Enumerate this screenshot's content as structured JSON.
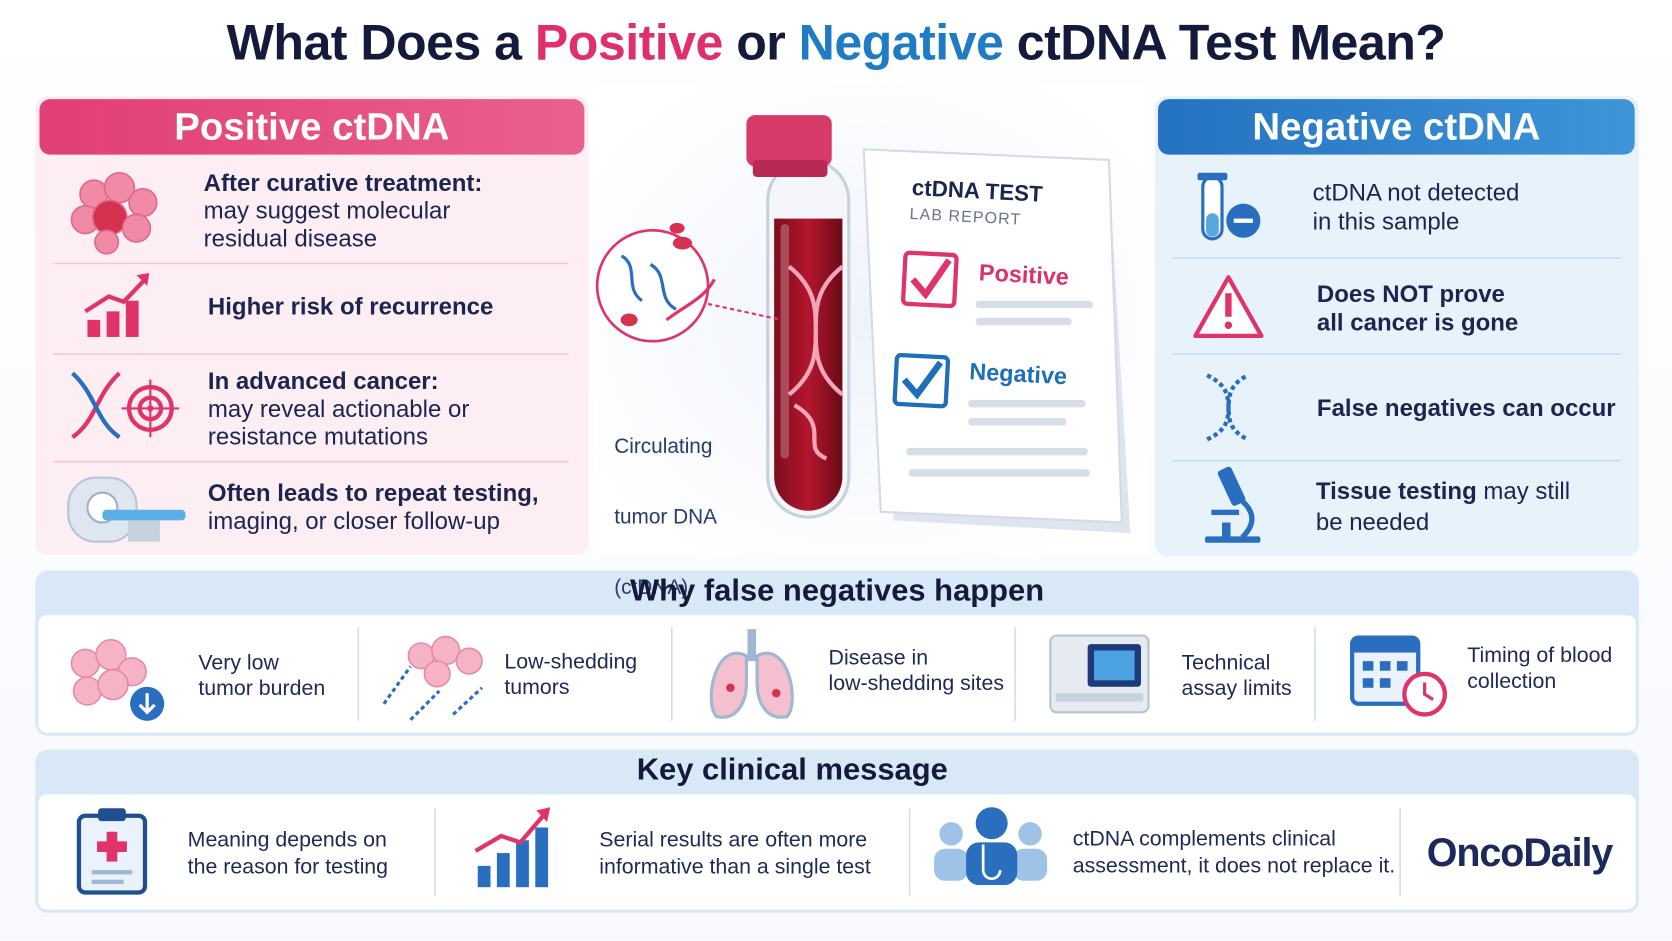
{
  "title": {
    "part1": "What Does a ",
    "positive": "Positive",
    "part2": " or ",
    "negative": "Negative",
    "part3": " ctDNA Test Mean?"
  },
  "positive_panel": {
    "heading": "Positive ctDNA",
    "items": [
      {
        "lines": [
          [
            {
              "text": "After curative treatment:",
              "bold": true
            }
          ],
          [
            {
              "text": "may suggest molecular"
            }
          ],
          [
            {
              "text": "residual disease"
            }
          ]
        ]
      },
      {
        "lines": [
          [
            {
              "text": "Higher risk of recurrence",
              "bold": true
            }
          ]
        ]
      },
      {
        "lines": [
          [
            {
              "text": "In advanced cancer:",
              "bold": true
            }
          ],
          [
            {
              "text": "may reveal actionable or"
            }
          ],
          [
            {
              "text": "resistance mutations"
            }
          ]
        ]
      },
      {
        "lines": [
          [
            {
              "text": "Often leads to repeat testing,",
              "bold": true
            }
          ],
          [
            {
              "text": "imaging, or closer follow-up"
            }
          ]
        ]
      }
    ]
  },
  "center": {
    "caption": [
      "Circulating",
      "tumor DNA",
      "(ctDNA)"
    ],
    "report": {
      "title": "ctDNA TEST",
      "subtitle": "LAB REPORT",
      "positive": "Positive",
      "negative": "Negative"
    }
  },
  "negative_panel": {
    "heading": "Negative ctDNA",
    "items": [
      {
        "lines": [
          [
            {
              "text": "ctDNA not detected"
            }
          ],
          [
            {
              "text": "in this sample"
            }
          ]
        ]
      },
      {
        "lines": [
          [
            {
              "text": "Does NOT prove",
              "bold": true
            }
          ],
          [
            {
              "text": "all cancer is gone",
              "bold": true
            }
          ]
        ]
      },
      {
        "lines": [
          [
            {
              "text": "False negatives can occur",
              "bold": true
            }
          ]
        ]
      },
      {
        "lines": [
          [
            {
              "text": "Tissue testing",
              "bold": true
            },
            {
              "text": " may still"
            }
          ],
          [
            {
              "text": "be needed"
            }
          ]
        ]
      }
    ]
  },
  "false_negatives": {
    "title": "Why false negatives happen",
    "items": [
      {
        "lines": [
          "Very low",
          "tumor burden"
        ]
      },
      {
        "lines": [
          "Low-shedding",
          "tumors"
        ]
      },
      {
        "lines": [
          "Disease in",
          "low-shedding sites"
        ]
      },
      {
        "lines": [
          "Technical",
          "assay limits"
        ]
      },
      {
        "lines": [
          "Timing of blood",
          "collection"
        ]
      }
    ]
  },
  "key_message": {
    "title": "Key clinical message",
    "items": [
      {
        "lines": [
          "Meaning depends on",
          "the reason for testing"
        ]
      },
      {
        "lines": [
          "Serial results are often more",
          "informative than a single test"
        ]
      },
      {
        "lines": [
          "ctDNA complements clinical",
          "assessment, it does not replace it."
        ]
      }
    ],
    "brand": "OncoDaily"
  }
}
